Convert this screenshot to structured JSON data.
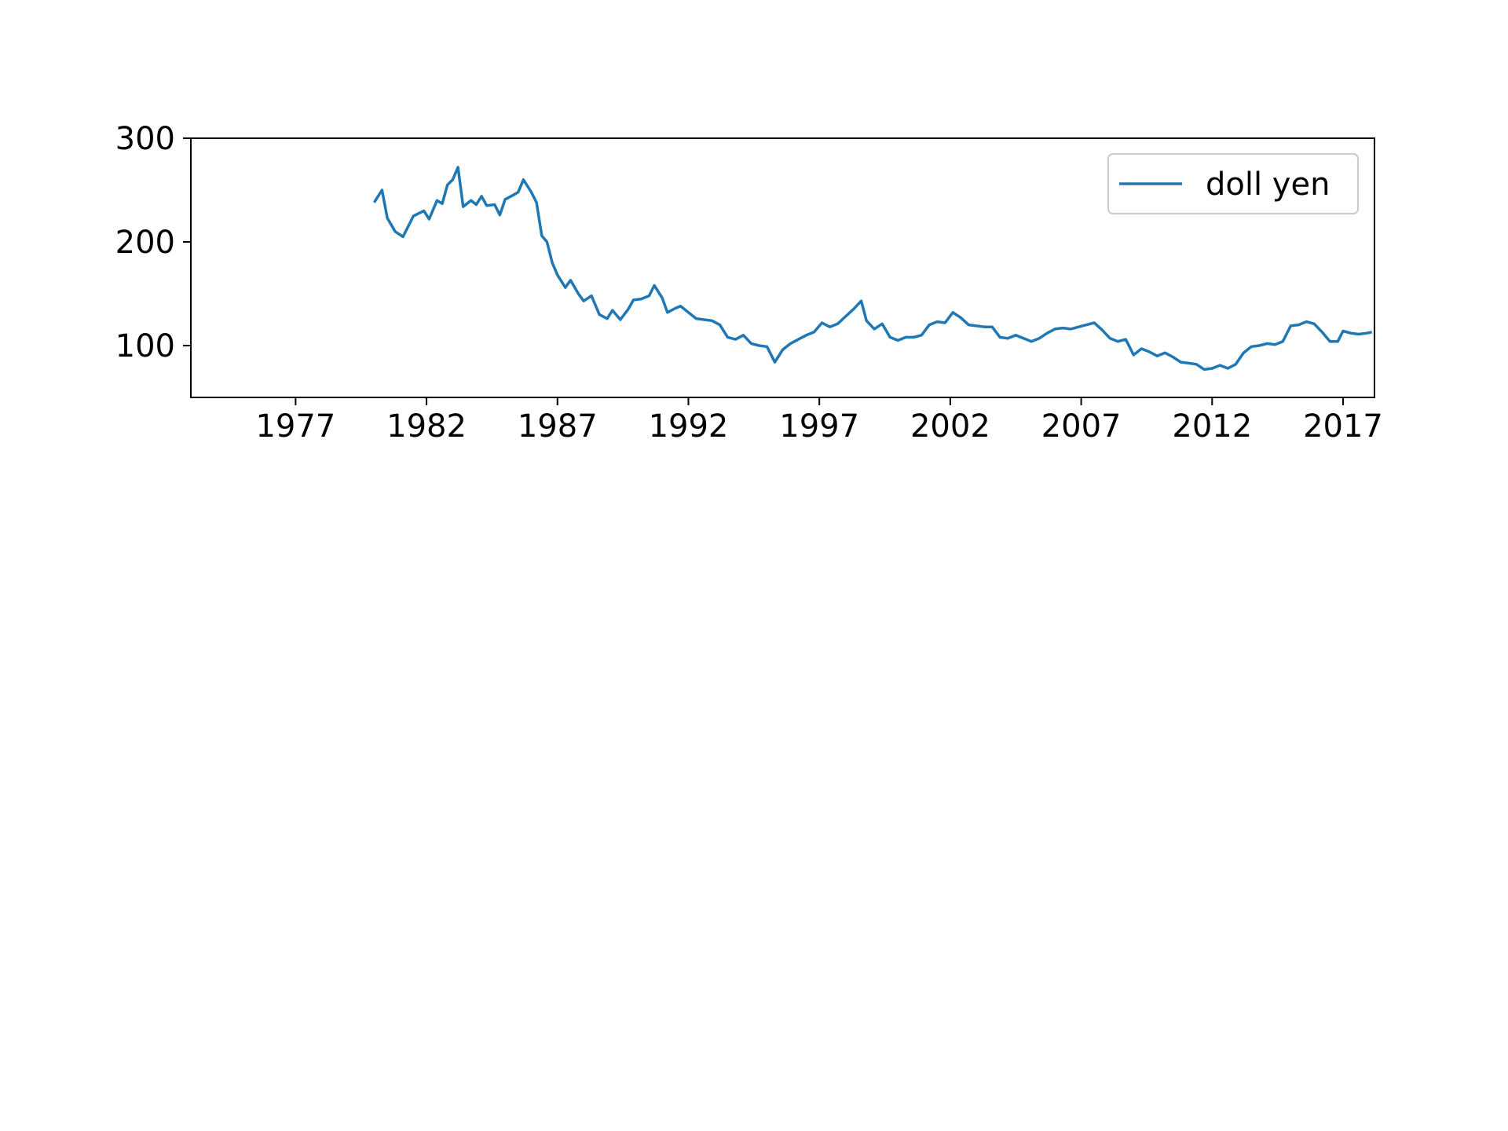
{
  "chart_data": {
    "type": "line",
    "title": "",
    "xlabel": "",
    "ylabel": "",
    "xlim": [
      1973,
      2018.2
    ],
    "ylim": [
      50,
      300
    ],
    "x_ticks": [
      1977,
      1982,
      1987,
      1992,
      1997,
      2002,
      2007,
      2012,
      2017
    ],
    "y_ticks": [
      100,
      200,
      300
    ],
    "grid": false,
    "legend_position": "top-right",
    "series": [
      {
        "name": "doll yen",
        "color": "#1f77b4",
        "points": [
          [
            1980.0,
            238
          ],
          [
            1980.3,
            250
          ],
          [
            1980.5,
            223
          ],
          [
            1980.8,
            210
          ],
          [
            1981.1,
            205
          ],
          [
            1981.5,
            225
          ],
          [
            1981.9,
            230
          ],
          [
            1982.1,
            222
          ],
          [
            1982.4,
            240
          ],
          [
            1982.6,
            237
          ],
          [
            1982.8,
            255
          ],
          [
            1983.0,
            260
          ],
          [
            1983.2,
            272
          ],
          [
            1983.4,
            234
          ],
          [
            1983.7,
            240
          ],
          [
            1983.9,
            236
          ],
          [
            1984.1,
            244
          ],
          [
            1984.3,
            235
          ],
          [
            1984.6,
            236
          ],
          [
            1984.8,
            226
          ],
          [
            1985.0,
            241
          ],
          [
            1985.3,
            245
          ],
          [
            1985.5,
            248
          ],
          [
            1985.7,
            260
          ],
          [
            1986.0,
            248
          ],
          [
            1986.2,
            238
          ],
          [
            1986.4,
            206
          ],
          [
            1986.6,
            200
          ],
          [
            1986.8,
            180
          ],
          [
            1987.0,
            168
          ],
          [
            1987.3,
            156
          ],
          [
            1987.5,
            163
          ],
          [
            1987.8,
            150
          ],
          [
            1988.0,
            143
          ],
          [
            1988.3,
            148
          ],
          [
            1988.6,
            130
          ],
          [
            1988.9,
            126
          ],
          [
            1989.1,
            134
          ],
          [
            1989.4,
            125
          ],
          [
            1989.7,
            135
          ],
          [
            1989.9,
            144
          ],
          [
            1990.2,
            145
          ],
          [
            1990.5,
            148
          ],
          [
            1990.7,
            158
          ],
          [
            1991.0,
            146
          ],
          [
            1991.2,
            132
          ],
          [
            1991.5,
            136
          ],
          [
            1991.7,
            138
          ],
          [
            1992.0,
            132
          ],
          [
            1992.3,
            126
          ],
          [
            1992.6,
            125
          ],
          [
            1992.9,
            124
          ],
          [
            1993.2,
            120
          ],
          [
            1993.5,
            108
          ],
          [
            1993.8,
            106
          ],
          [
            1994.1,
            110
          ],
          [
            1994.4,
            102
          ],
          [
            1994.7,
            100
          ],
          [
            1995.0,
            99
          ],
          [
            1995.3,
            84
          ],
          [
            1995.6,
            96
          ],
          [
            1995.9,
            102
          ],
          [
            1996.2,
            106
          ],
          [
            1996.5,
            110
          ],
          [
            1996.8,
            113
          ],
          [
            1997.1,
            122
          ],
          [
            1997.4,
            118
          ],
          [
            1997.7,
            121
          ],
          [
            1998.0,
            128
          ],
          [
            1998.3,
            135
          ],
          [
            1998.6,
            143
          ],
          [
            1998.8,
            124
          ],
          [
            1999.1,
            116
          ],
          [
            1999.4,
            121
          ],
          [
            1999.7,
            108
          ],
          [
            2000.0,
            105
          ],
          [
            2000.3,
            108
          ],
          [
            2000.6,
            108
          ],
          [
            2000.9,
            110
          ],
          [
            2001.2,
            120
          ],
          [
            2001.5,
            123
          ],
          [
            2001.8,
            122
          ],
          [
            2002.1,
            132
          ],
          [
            2002.4,
            127
          ],
          [
            2002.7,
            120
          ],
          [
            2003.0,
            119
          ],
          [
            2003.3,
            118
          ],
          [
            2003.6,
            118
          ],
          [
            2003.9,
            108
          ],
          [
            2004.2,
            107
          ],
          [
            2004.5,
            110
          ],
          [
            2004.8,
            107
          ],
          [
            2005.1,
            104
          ],
          [
            2005.4,
            107
          ],
          [
            2005.7,
            112
          ],
          [
            2006.0,
            116
          ],
          [
            2006.3,
            117
          ],
          [
            2006.6,
            116
          ],
          [
            2006.9,
            118
          ],
          [
            2007.2,
            120
          ],
          [
            2007.5,
            122
          ],
          [
            2007.8,
            115
          ],
          [
            2008.1,
            107
          ],
          [
            2008.4,
            104
          ],
          [
            2008.7,
            106
          ],
          [
            2009.0,
            91
          ],
          [
            2009.3,
            97
          ],
          [
            2009.6,
            94
          ],
          [
            2009.9,
            90
          ],
          [
            2010.2,
            93
          ],
          [
            2010.5,
            89
          ],
          [
            2010.8,
            84
          ],
          [
            2011.1,
            83
          ],
          [
            2011.4,
            82
          ],
          [
            2011.7,
            77
          ],
          [
            2012.0,
            78
          ],
          [
            2012.3,
            81
          ],
          [
            2012.6,
            78
          ],
          [
            2012.9,
            82
          ],
          [
            2013.2,
            93
          ],
          [
            2013.5,
            99
          ],
          [
            2013.8,
            100
          ],
          [
            2014.1,
            102
          ],
          [
            2014.4,
            101
          ],
          [
            2014.7,
            104
          ],
          [
            2015.0,
            119
          ],
          [
            2015.3,
            120
          ],
          [
            2015.6,
            123
          ],
          [
            2015.9,
            121
          ],
          [
            2016.2,
            113
          ],
          [
            2016.5,
            104
          ],
          [
            2016.8,
            104
          ],
          [
            2017.0,
            114
          ],
          [
            2017.3,
            112
          ],
          [
            2017.6,
            111
          ],
          [
            2017.9,
            112
          ],
          [
            2018.1,
            113
          ]
        ]
      }
    ]
  }
}
